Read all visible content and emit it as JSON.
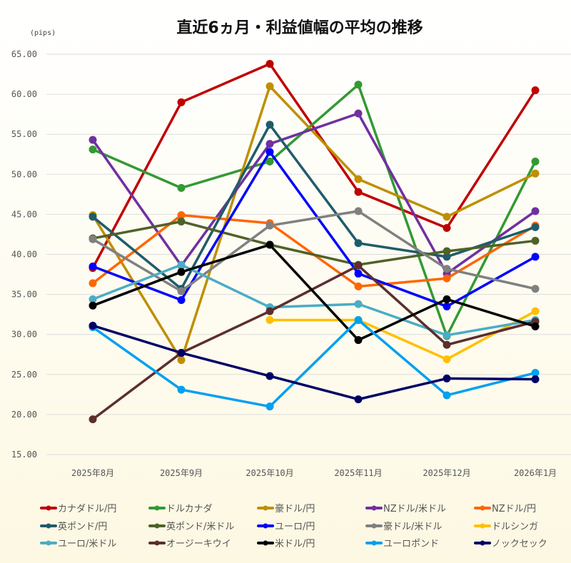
{
  "chart_data": {
    "type": "line",
    "title": "直近6ヵ月・利益値幅の平均の推移",
    "ylabel": "(pips)",
    "xlabel": "",
    "ylim": [
      15,
      65
    ],
    "yticks": [
      "15.00",
      "20.00",
      "25.00",
      "30.00",
      "35.00",
      "40.00",
      "45.00",
      "50.00",
      "55.00",
      "60.00",
      "65.00"
    ],
    "grid": true,
    "legend_position": "bottom",
    "categories": [
      "2025年8月",
      "2025年9月",
      "2025年10月",
      "2025年11月",
      "2025年12月",
      "2026年1月"
    ],
    "series": [
      {
        "name": "カナダドル/円",
        "color": "#c00000",
        "values": [
          38.3,
          59.0,
          63.8,
          47.8,
          43.3,
          60.5
        ]
      },
      {
        "name": "ドルカナダ",
        "color": "#339933",
        "values": [
          53.1,
          48.3,
          51.6,
          61.2,
          29.8,
          51.6
        ]
      },
      {
        "name": "豪ドル/円",
        "color": "#bf8f00",
        "values": [
          44.9,
          26.8,
          61.0,
          49.4,
          44.7,
          50.1
        ]
      },
      {
        "name": "NZドル/米ドル",
        "color": "#7030a0",
        "values": [
          54.3,
          38.6,
          53.8,
          57.6,
          37.6,
          45.4
        ]
      },
      {
        "name": "NZドル/円",
        "color": "#ff6600",
        "values": [
          36.4,
          44.9,
          43.9,
          36.0,
          37.0,
          43.6
        ]
      },
      {
        "name": "英ポンド/円",
        "color": "#1f5c6b",
        "values": [
          44.7,
          35.7,
          56.2,
          41.4,
          39.7,
          43.4
        ]
      },
      {
        "name": "英ポンド/米ドル",
        "color": "#4f6228",
        "values": [
          42.0,
          44.1,
          41.2,
          38.7,
          40.4,
          41.7
        ]
      },
      {
        "name": "ユーロ/円",
        "color": "#0000ff",
        "values": [
          38.5,
          34.3,
          52.8,
          37.6,
          33.5,
          39.7
        ]
      },
      {
        "name": "豪ドル/米ドル",
        "color": "#808080",
        "values": [
          41.9,
          35.4,
          43.6,
          45.4,
          38.2,
          35.7
        ]
      },
      {
        "name": "ドルシンガ",
        "color": "#ffc000",
        "values": [
          null,
          null,
          31.8,
          31.8,
          26.9,
          32.9
        ]
      },
      {
        "name": "ユーロ/米ドル",
        "color": "#4bacc6",
        "values": [
          34.4,
          38.7,
          33.4,
          33.8,
          29.9,
          31.8
        ]
      },
      {
        "name": "オージーキウイ",
        "color": "#5c2e2e",
        "values": [
          19.4,
          27.7,
          32.9,
          38.6,
          28.7,
          31.6
        ]
      },
      {
        "name": "米ドル/円",
        "color": "#000000",
        "values": [
          33.6,
          37.8,
          41.2,
          29.3,
          34.4,
          31.0
        ]
      },
      {
        "name": "ユーロポンド",
        "color": "#00a0f0",
        "values": [
          30.9,
          23.1,
          21.0,
          31.8,
          22.4,
          25.2
        ]
      },
      {
        "name": "ノックセック",
        "color": "#000066",
        "values": [
          31.1,
          27.7,
          24.8,
          21.9,
          24.5,
          24.4
        ]
      }
    ]
  }
}
